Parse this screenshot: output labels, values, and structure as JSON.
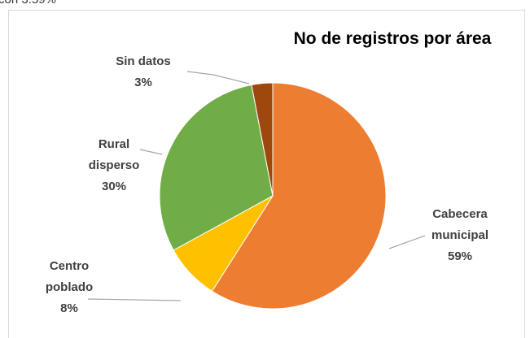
{
  "fragment": "con 3.59%",
  "chart_data": {
    "type": "pie",
    "title": "No de registros por área",
    "categories": [
      "Cabecera\nmunicipal",
      "Centro\npoblado",
      "Rural\ndisperso",
      "Sin datos"
    ],
    "values": [
      59,
      8,
      30,
      3
    ],
    "value_labels": [
      "59%",
      "8%",
      "30%",
      "3%"
    ],
    "colors": [
      "#ED7D31",
      "#FFC000",
      "#70AD47",
      "#9E480E"
    ]
  }
}
